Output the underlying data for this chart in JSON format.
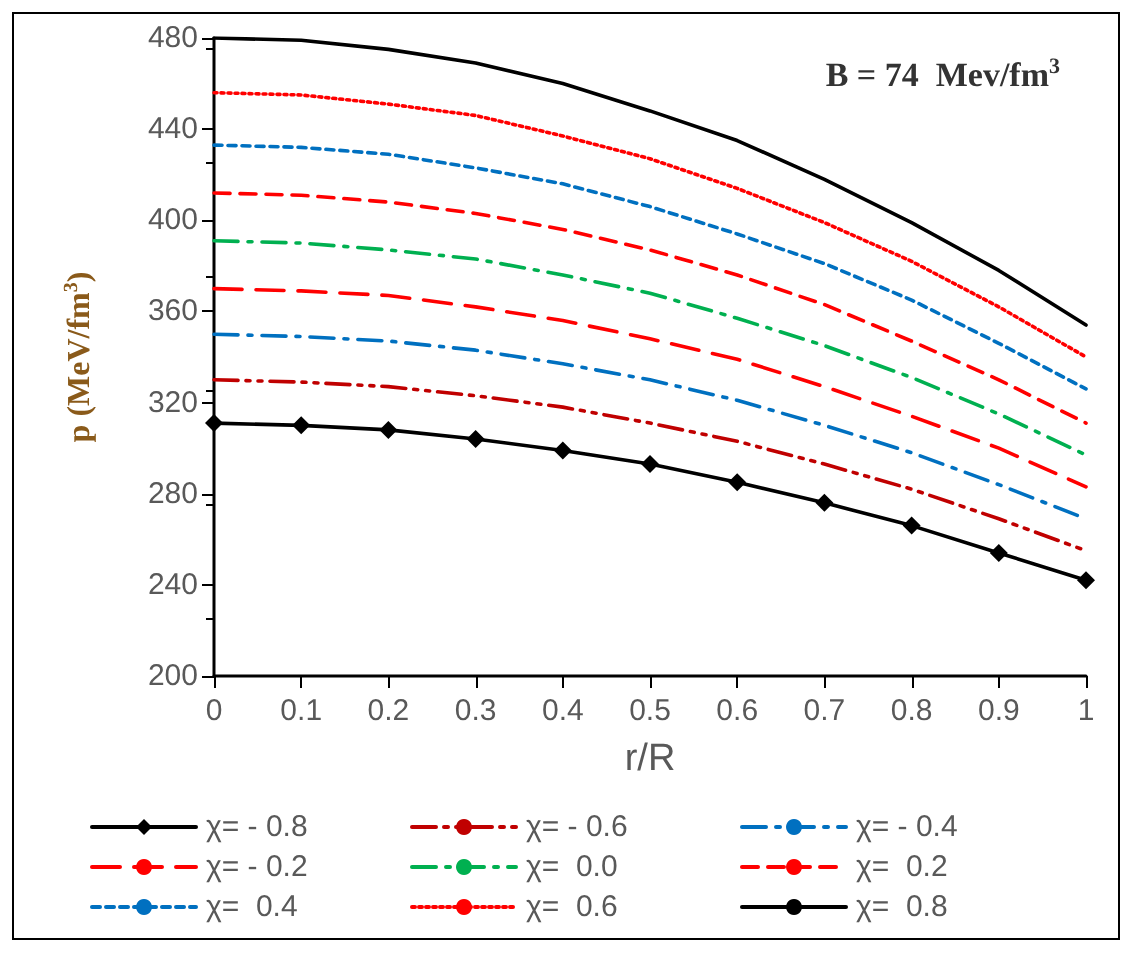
{
  "chart_data": {
    "type": "line",
    "xlabel": "r/R",
    "ylabel": "p (MeV/fm$^{3}$)",
    "annotations": [
      "B = 74  Mev/fm$^{3}$"
    ],
    "x": [
      0,
      0.1,
      0.2,
      0.3,
      0.4,
      0.5,
      0.6,
      0.7,
      0.8,
      0.9,
      1
    ],
    "xlim": [
      0,
      1
    ],
    "xticks": [
      0,
      0.1,
      0.2,
      0.3,
      0.4,
      0.5,
      0.6,
      0.7,
      0.8,
      0.9,
      1
    ],
    "ylim": [
      200,
      480
    ],
    "yticks": [
      200,
      240,
      280,
      320,
      360,
      400,
      440,
      480
    ],
    "grid": false,
    "legend": "bottom",
    "marker": "none",
    "series": [
      {
        "name": "χ= - 0.8",
        "color": "#000000",
        "line_style": "solid",
        "marker": "diamond",
        "values": [
          311,
          310,
          308,
          304,
          299,
          293,
          285,
          276,
          266,
          254,
          242
        ]
      },
      {
        "name": "χ= - 0.6",
        "color": "#c00000",
        "line_style": "dashdotdot",
        "values": [
          330,
          329,
          327,
          323,
          318,
          311,
          303,
          293,
          282,
          269,
          255
        ]
      },
      {
        "name": "χ= - 0.4",
        "color": "#0070c0",
        "line_style": "dashdot",
        "values": [
          350,
          349,
          347,
          343,
          337,
          330,
          321,
          310,
          298,
          284,
          269
        ]
      },
      {
        "name": "χ= - 0.2",
        "color": "#ff0000",
        "line_style": "longdashed",
        "values": [
          370,
          369,
          367,
          362,
          356,
          348,
          339,
          327,
          314,
          300,
          283
        ]
      },
      {
        "name": "χ=  0.0",
        "color": "#00b050",
        "line_style": "dashdot",
        "values": [
          391,
          390,
          387,
          383,
          376,
          368,
          357,
          345,
          331,
          315,
          297
        ]
      },
      {
        "name": "χ=  0.2",
        "color": "#ff0000",
        "line_style": "dashed",
        "values": [
          412,
          411,
          408,
          403,
          396,
          387,
          376,
          363,
          347,
          330,
          311
        ]
      },
      {
        "name": "χ=  0.4",
        "color": "#0070c0",
        "line_style": "shortdashed",
        "values": [
          433,
          432,
          429,
          423,
          416,
          406,
          394,
          381,
          365,
          346,
          326
        ]
      },
      {
        "name": "χ=  0.6",
        "color": "#ff0000",
        "line_style": "dotted",
        "values": [
          456,
          455,
          451,
          446,
          437,
          427,
          414,
          399,
          382,
          362,
          340
        ]
      },
      {
        "name": "χ=  0.8",
        "color": "#000000",
        "line_style": "solid",
        "values": [
          480,
          479,
          475,
          469,
          460,
          448,
          435,
          418,
          399,
          378,
          354
        ]
      }
    ]
  }
}
